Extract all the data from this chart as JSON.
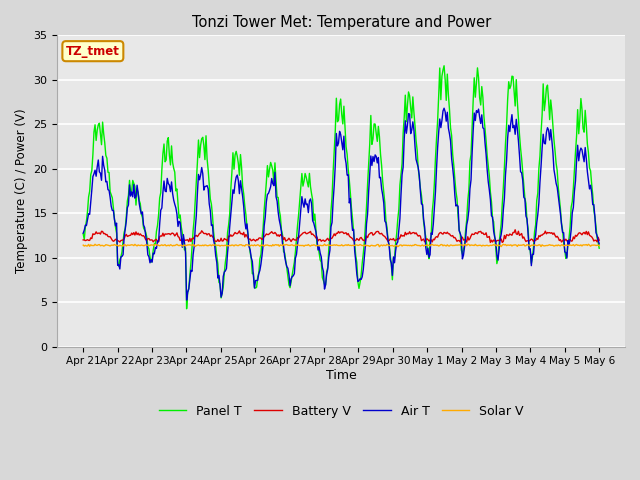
{
  "title": "Tonzi Tower Met: Temperature and Power",
  "xlabel": "Time",
  "ylabel": "Temperature (C) / Power (V)",
  "ylim": [
    0,
    35
  ],
  "yticks": [
    0,
    5,
    10,
    15,
    20,
    25,
    30,
    35
  ],
  "fig_bg_color": "#d8d8d8",
  "plot_bg_color": "#e8e8e8",
  "grid_color": "white",
  "annotation_text": "TZ_tmet",
  "annotation_bg": "#ffffcc",
  "annotation_border": "#cc8800",
  "annotation_text_color": "#cc0000",
  "series": {
    "panel_t": {
      "color": "#00ee00",
      "label": "Panel T",
      "lw": 1.0
    },
    "battery_v": {
      "color": "#dd0000",
      "label": "Battery V",
      "lw": 1.0
    },
    "air_t": {
      "color": "#0000cc",
      "label": "Air T",
      "lw": 1.0
    },
    "solar_v": {
      "color": "#ffaa00",
      "label": "Solar V",
      "lw": 1.0
    }
  },
  "x_tick_labels": [
    "Apr 21",
    "Apr 22",
    "Apr 23",
    "Apr 24",
    "Apr 25",
    "Apr 26",
    "Apr 27",
    "Apr 28",
    "Apr 29",
    "Apr 30",
    "May 1",
    "May 2",
    "May 3",
    "May 4",
    "May 5",
    "May 6"
  ],
  "n_points": 480,
  "days": 15
}
